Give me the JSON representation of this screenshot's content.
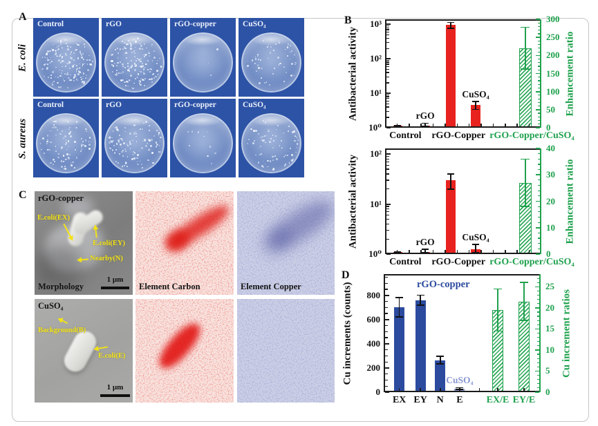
{
  "panel_a": {
    "label": "A",
    "columns": [
      "Control",
      "rGO",
      "rGO-copper",
      "CuSO₄"
    ],
    "rows": [
      {
        "organism": "E. coli",
        "cells": [
          {
            "label": "Control",
            "colony_density": 170
          },
          {
            "label": "rGO",
            "colony_density": 165
          },
          {
            "label": "rGO-copper",
            "colony_density": 4
          },
          {
            "label": "CuSO₄",
            "colony_density": 52
          }
        ]
      },
      {
        "organism": "S. aureus",
        "cells": [
          {
            "label": "Control",
            "colony_density": 95
          },
          {
            "label": "rGO",
            "colony_density": 115
          },
          {
            "label": "rGO-copper",
            "colony_density": 10
          },
          {
            "label": "CuSO₄",
            "colony_density": 75
          }
        ]
      }
    ]
  },
  "panel_b": {
    "label": "B"
  },
  "panel_c": {
    "label": "C",
    "sem1": {
      "title": "rGO-copper",
      "ann_ex": "E.coli(EX)",
      "ann_ey": "E.coli(EY)",
      "ann_n": "Nearby(N)",
      "footer": "Morphology",
      "scale": "1 μm"
    },
    "carbon1": {
      "label": "Element Carbon"
    },
    "copper1": {
      "label": "Element Copper"
    },
    "sem2": {
      "title": "CuSO₄",
      "ann_b": "Background(B)",
      "ann_e": "E.coli(E)",
      "scale": "1 μm"
    }
  },
  "panel_d": {
    "label": "D"
  },
  "chart_data": [
    {
      "id": "b1",
      "type": "bar",
      "title": "",
      "left_axis": {
        "label": "Antibacterial activity",
        "scale": "log",
        "min": 1,
        "max": 1400,
        "ticks": [
          {
            "v": 1,
            "t": "10⁰"
          },
          {
            "v": 10,
            "t": "10¹"
          },
          {
            "v": 100,
            "t": "10²"
          },
          {
            "v": 1000,
            "t": "10³"
          }
        ]
      },
      "right_axis": {
        "label": "Enhancement ratio",
        "scale": "linear",
        "min": 0,
        "max": 300,
        "ticks": [
          0,
          50,
          100,
          150,
          200,
          250,
          300
        ],
        "minor": 10
      },
      "bars": [
        {
          "name": "Control",
          "value": 1.0,
          "error": 0.15,
          "axis": "left",
          "style": "red"
        },
        {
          "name": "rGO",
          "value": 1.1,
          "error": 0.25,
          "axis": "left",
          "style": "red",
          "annotation": "rGO"
        },
        {
          "name": "rGO-Copper",
          "value": 950,
          "error": 180,
          "axis": "left",
          "style": "red"
        },
        {
          "name": "CuSO₄",
          "value": 4.6,
          "error": 1.2,
          "axis": "left",
          "style": "red",
          "annotation": "CuSO₄"
        },
        {
          "name": "rGO-Copper/CuSO₄",
          "value": 220,
          "error": 58,
          "axis": "right",
          "style": "green-hatch"
        }
      ],
      "x_labels": [
        {
          "text": "Control",
          "color": "black"
        },
        {
          "text": "rGO-Copper",
          "color": "black"
        },
        {
          "text": "rGO-Copper/CuSO₄",
          "color": "green"
        }
      ]
    },
    {
      "id": "b2",
      "type": "bar",
      "title": "",
      "left_axis": {
        "label": "Antibacterial activity",
        "scale": "log",
        "min": 1,
        "max": 130,
        "ticks": [
          {
            "v": 1,
            "t": "10⁰"
          },
          {
            "v": 10,
            "t": "10¹"
          },
          {
            "v": 100,
            "t": "10²"
          }
        ]
      },
      "right_axis": {
        "label": "Enhancement ratio",
        "scale": "linear",
        "min": 0,
        "max": 40,
        "ticks": [
          0,
          10,
          20,
          30,
          40
        ],
        "minor": 2
      },
      "bars": [
        {
          "name": "Control",
          "value": 1.0,
          "error": 0.12,
          "axis": "left",
          "style": "red"
        },
        {
          "name": "rGO",
          "value": 1.05,
          "error": 0.2,
          "axis": "left",
          "style": "red",
          "annotation": "rGO"
        },
        {
          "name": "rGO-Copper",
          "value": 30,
          "error": 10,
          "axis": "left",
          "style": "red"
        },
        {
          "name": "CuSO₄",
          "value": 1.25,
          "error": 0.3,
          "axis": "left",
          "style": "red",
          "annotation": "CuSO₄"
        },
        {
          "name": "rGO-Copper/CuSO₄",
          "value": 27,
          "error": 9,
          "axis": "right",
          "style": "green-hatch"
        }
      ],
      "x_labels": [
        {
          "text": "Control",
          "color": "black"
        },
        {
          "text": "rGO-Copper",
          "color": "black"
        },
        {
          "text": "rGO-Copper/CuSO₄",
          "color": "green"
        }
      ]
    },
    {
      "id": "d",
      "type": "bar",
      "title": "",
      "left_axis": {
        "label": "Cu increments (counts)",
        "scale": "linear",
        "min": 0,
        "max": 975,
        "ticks": [
          0,
          200,
          400,
          600,
          800
        ],
        "minor": 50
      },
      "right_axis": {
        "label": "Cu increment ratios",
        "scale": "linear",
        "min": 0,
        "max": 28,
        "ticks": [
          0,
          5,
          10,
          15,
          20,
          25
        ],
        "minor": 1
      },
      "annotation": {
        "text": "rGO-copper",
        "color": "blue"
      },
      "bars": [
        {
          "name": "EX",
          "value": 700,
          "error": 80,
          "axis": "left",
          "style": "blue"
        },
        {
          "name": "EY",
          "value": 760,
          "error": 40,
          "axis": "left",
          "style": "blue"
        },
        {
          "name": "N",
          "value": 265,
          "error": 32,
          "axis": "left",
          "style": "blue"
        },
        {
          "name": "E",
          "value": 30,
          "error": 8,
          "axis": "left",
          "style": "lightblue",
          "annotation": "CuSO₄",
          "annotation_color": "lightblue"
        },
        {
          "name": "EX/E",
          "value": 19.5,
          "error": 5,
          "axis": "right",
          "style": "green-hatch"
        },
        {
          "name": "EY/E",
          "value": 21.5,
          "error": 4.5,
          "axis": "right",
          "style": "green-hatch"
        }
      ],
      "x_labels": [
        {
          "text": "EX",
          "color": "black"
        },
        {
          "text": "EY",
          "color": "black"
        },
        {
          "text": "N",
          "color": "black"
        },
        {
          "text": "E",
          "color": "black"
        },
        {
          "text": "EX/E",
          "color": "green"
        },
        {
          "text": "EY/E",
          "color": "green"
        }
      ]
    }
  ],
  "colors": {
    "red_bar": "#e8231f",
    "green": "#1fa14d",
    "hatch_line": "#2fa85a",
    "blue_bar": "#2c4b9f",
    "light_blue": "#8a97cf",
    "dish_bg": "#2d53a6",
    "axis_black": "#1a1a1a",
    "yellow_annotation": "#f2e218"
  }
}
